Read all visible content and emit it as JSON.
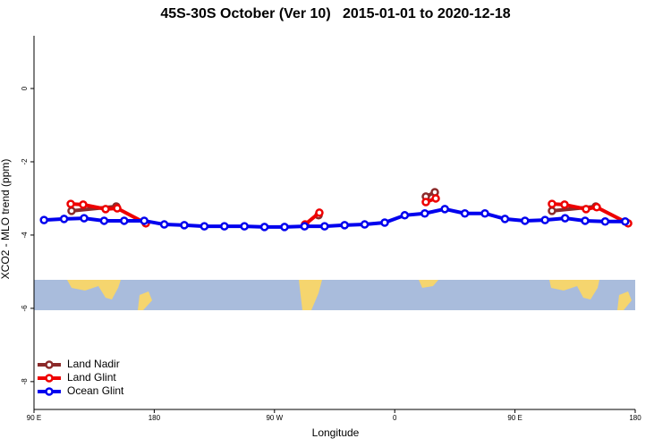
{
  "chart_data": {
    "type": "line",
    "title": "45S-30S October (Ver 10)   2015-01-01 to 2020-12-18",
    "xlabel": "Longitude",
    "ylabel": "XCO2 - MLO trend (ppm)",
    "xlim": [
      90,
      540
    ],
    "xticks": [
      {
        "value": 90,
        "label": "90 E"
      },
      {
        "value": 180,
        "label": "180"
      },
      {
        "value": 270,
        "label": "90 W"
      },
      {
        "value": 360,
        "label": "0"
      },
      {
        "value": 450,
        "label": "90 E"
      },
      {
        "value": 540,
        "label": "180"
      }
    ],
    "ylim": [
      -8.76,
      1.44
    ],
    "yticks": [
      0,
      -2,
      -4,
      -6,
      -8
    ],
    "legend": "lower left",
    "series": [
      {
        "name": "Land Nadir",
        "color": "#8b2a2a",
        "x": [
          118.1,
          151.6,
          null,
          303.0,
          null,
          383.3,
          390.0,
          null,
          477.7,
          510.5
        ],
        "values": [
          -3.34,
          -3.22,
          null,
          -3.46,
          null,
          -2.95,
          -2.83,
          null,
          -3.34,
          -3.22
        ]
      },
      {
        "name": "Land Glint",
        "color": "#ee0000",
        "x": [
          117.5,
          126.8,
          143.6,
          152.3,
          173.7,
          null,
          292.9,
          303.6,
          null,
          383.3,
          390.7,
          null,
          477.7,
          487.1,
          503.2,
          511.2,
          534.7
        ],
        "values": [
          -3.15,
          -3.17,
          -3.29,
          -3.27,
          -3.68,
          null,
          -3.71,
          -3.39,
          null,
          -3.1,
          -3.0,
          null,
          -3.15,
          -3.17,
          -3.29,
          -3.24,
          -3.68
        ]
      },
      {
        "name": "Ocean Glint",
        "color": "#0000ee",
        "x": [
          97.5,
          112.5,
          127.5,
          142.5,
          157.5,
          172.5,
          187.5,
          202.5,
          217.5,
          232.5,
          247.5,
          262.5,
          277.5,
          292.5,
          307.5,
          322.5,
          337.5,
          352.5,
          367.5,
          382.5,
          397.5,
          412.5,
          427.5,
          442.5,
          457.5,
          472.5,
          487.5,
          502.5,
          517.5,
          532.5
        ],
        "values": [
          -3.59,
          -3.56,
          -3.54,
          -3.61,
          -3.61,
          -3.61,
          -3.71,
          -3.73,
          -3.76,
          -3.76,
          -3.76,
          -3.78,
          -3.78,
          -3.76,
          -3.76,
          -3.73,
          -3.71,
          -3.66,
          -3.46,
          -3.41,
          -3.29,
          -3.41,
          -3.41,
          -3.56,
          -3.61,
          -3.59,
          -3.54,
          -3.61,
          -3.63,
          -3.63
        ]
      }
    ]
  }
}
